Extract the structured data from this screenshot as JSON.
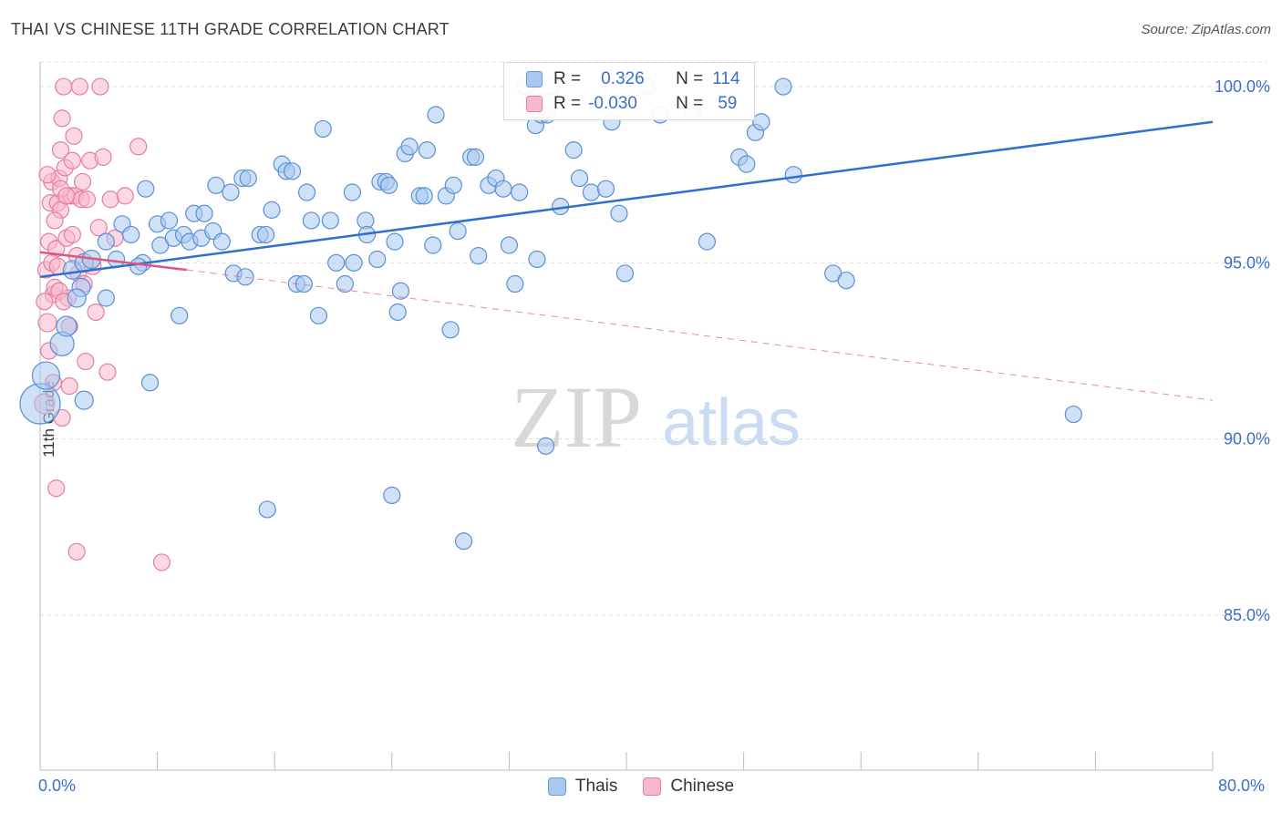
{
  "title": "THAI VS CHINESE 11TH GRADE CORRELATION CHART",
  "source": "Source: ZipAtlas.com",
  "watermark": {
    "zip": "ZIP",
    "atlas": "atlas"
  },
  "legend": {
    "rows": [
      {
        "r_label": "R =",
        "r_value": "0.326",
        "n_label": "N =",
        "n_value": "114",
        "color": "#a8c8f0",
        "border": "#6a9be0"
      },
      {
        "r_label": "R =",
        "r_value": "-0.030",
        "n_label": "N =",
        "n_value": "59",
        "color": "#f7b8cc",
        "border": "#e87ea0"
      }
    ]
  },
  "bottom_legend": [
    {
      "label": "Thais",
      "color": "#a8c8f0",
      "border": "#6a9be0"
    },
    {
      "label": "Chinese",
      "color": "#f7b8cc",
      "border": "#e87ea0"
    }
  ],
  "colors": {
    "thai_fill": "#a8c8f0",
    "thai_stroke": "#5b8fd6",
    "thai_line": "#2f6fd0",
    "chinese_fill": "#f7b8cc",
    "chinese_stroke": "#e57ea1",
    "chinese_line": "#e0557f",
    "grid": "#dddddd",
    "tick_label": "#3b6fc9"
  },
  "chart_data": {
    "type": "scatter",
    "title": "THAI VS CHINESE 11TH GRADE CORRELATION CHART",
    "xlabel": "",
    "ylabel": "11th Grade",
    "xlim": [
      0,
      80
    ],
    "ylim": [
      80.5,
      100.8
    ],
    "x_tick_labels": [
      "0.0%",
      "80.0%"
    ],
    "y_ticks": [
      85,
      90,
      95,
      100
    ],
    "y_tick_labels": [
      "85.0%",
      "90.0%",
      "95.0%",
      "100.0%"
    ],
    "grid": true,
    "legend_placement": "top-center",
    "series": [
      {
        "name": "Thais",
        "trend": {
          "x0": 0,
          "y0": 94.6,
          "x1": 80,
          "y1": 99.0,
          "style": "solid"
        },
        "points": [
          [
            0,
            91.0,
            22
          ],
          [
            0.4,
            91.8,
            15
          ],
          [
            1.5,
            92.7,
            13
          ],
          [
            1.8,
            93.2,
            11
          ],
          [
            2.2,
            94.8,
            10
          ],
          [
            2.8,
            94.3,
            10
          ],
          [
            3.0,
            95.0,
            10
          ],
          [
            3.5,
            95.1,
            10
          ],
          [
            4.5,
            95.6,
            9
          ],
          [
            5.2,
            95.1,
            9
          ],
          [
            5.6,
            96.1,
            9
          ],
          [
            6.2,
            95.8,
            9
          ],
          [
            7.0,
            95.0,
            9
          ],
          [
            7.2,
            97.1,
            9
          ],
          [
            8.0,
            96.1,
            9
          ],
          [
            8.2,
            95.5,
            9
          ],
          [
            8.8,
            96.2,
            9
          ],
          [
            9.1,
            95.7,
            9
          ],
          [
            9.8,
            95.8,
            9
          ],
          [
            10.2,
            95.6,
            9
          ],
          [
            10.5,
            96.4,
            9
          ],
          [
            11.0,
            95.7,
            9
          ],
          [
            11.2,
            96.4,
            9
          ],
          [
            11.8,
            95.9,
            9
          ],
          [
            12.0,
            97.2,
            9
          ],
          [
            12.4,
            95.6,
            9
          ],
          [
            13.0,
            97.0,
            9
          ],
          [
            13.2,
            94.7,
            9
          ],
          [
            13.8,
            97.4,
            9
          ],
          [
            14.2,
            97.4,
            9
          ],
          [
            14.0,
            94.6,
            9
          ],
          [
            15.0,
            95.8,
            9
          ],
          [
            15.4,
            95.8,
            9
          ],
          [
            15.8,
            96.5,
            9
          ],
          [
            16.5,
            97.8,
            9
          ],
          [
            16.8,
            97.6,
            9
          ],
          [
            17.2,
            97.6,
            9
          ],
          [
            17.5,
            94.4,
            9
          ],
          [
            18.0,
            94.4,
            9
          ],
          [
            18.2,
            97.0,
            9
          ],
          [
            18.5,
            96.2,
            9
          ],
          [
            19.0,
            93.5,
            9
          ],
          [
            19.3,
            98.8,
            9
          ],
          [
            19.8,
            96.2,
            9
          ],
          [
            20.2,
            95.0,
            9
          ],
          [
            20.8,
            94.4,
            9
          ],
          [
            21.3,
            97.0,
            9
          ],
          [
            21.4,
            95.0,
            9
          ],
          [
            22.2,
            96.2,
            9
          ],
          [
            22.3,
            95.8,
            9
          ],
          [
            23.0,
            95.1,
            9
          ],
          [
            23.2,
            97.3,
            9
          ],
          [
            23.6,
            97.3,
            9
          ],
          [
            23.8,
            97.2,
            9
          ],
          [
            24.2,
            95.6,
            9
          ],
          [
            24.4,
            93.6,
            9
          ],
          [
            24.9,
            98.1,
            9
          ],
          [
            25.2,
            98.3,
            9
          ],
          [
            25.9,
            96.9,
            9
          ],
          [
            26.2,
            96.9,
            9
          ],
          [
            26.4,
            98.2,
            9
          ],
          [
            26.8,
            95.5,
            9
          ],
          [
            27.0,
            99.2,
            9
          ],
          [
            27.7,
            96.9,
            9
          ],
          [
            28.2,
            97.2,
            9
          ],
          [
            28.5,
            95.9,
            9
          ],
          [
            28.0,
            93.1,
            9
          ],
          [
            29.4,
            98.0,
            9
          ],
          [
            29.7,
            98.0,
            9
          ],
          [
            29.9,
            95.2,
            9
          ],
          [
            30.6,
            97.2,
            9
          ],
          [
            31.1,
            97.4,
            9
          ],
          [
            31.6,
            97.1,
            9
          ],
          [
            32.0,
            95.5,
            9
          ],
          [
            32.4,
            94.4,
            9
          ],
          [
            32.7,
            97.0,
            9
          ],
          [
            33.1,
            100.0,
            9
          ],
          [
            33.8,
            98.9,
            9
          ],
          [
            33.9,
            95.1,
            9
          ],
          [
            34.2,
            99.2,
            9
          ],
          [
            34.6,
            99.2,
            9
          ],
          [
            34.9,
            100.0,
            9
          ],
          [
            35.5,
            96.6,
            9
          ],
          [
            36.4,
            98.2,
            9
          ],
          [
            36.8,
            97.4,
            9
          ],
          [
            37.6,
            97.0,
            9
          ],
          [
            38.6,
            97.1,
            9
          ],
          [
            39.0,
            99.0,
            9
          ],
          [
            39.5,
            96.4,
            9
          ],
          [
            39.9,
            94.7,
            9
          ],
          [
            41.4,
            100.0,
            9
          ],
          [
            42.3,
            99.2,
            9
          ],
          [
            44.5,
            99.3,
            9
          ],
          [
            45.5,
            95.6,
            9
          ],
          [
            47.7,
            98.0,
            9
          ],
          [
            48.2,
            97.8,
            9
          ],
          [
            48.8,
            98.7,
            9
          ],
          [
            49.2,
            99.0,
            9
          ],
          [
            50.7,
            100.0,
            9
          ],
          [
            51.4,
            97.5,
            9
          ],
          [
            54.1,
            94.7,
            9
          ],
          [
            55.0,
            94.5,
            9
          ],
          [
            4.5,
            94.0,
            9
          ],
          [
            6.7,
            94.9,
            9
          ],
          [
            7.5,
            91.6,
            9
          ],
          [
            9.5,
            93.5,
            9
          ],
          [
            15.5,
            88.0,
            9
          ],
          [
            24.6,
            94.2,
            9
          ],
          [
            24.0,
            88.4,
            9
          ],
          [
            28.9,
            87.1,
            9
          ],
          [
            34.5,
            89.8,
            9
          ],
          [
            70.5,
            90.7,
            9
          ],
          [
            3.0,
            91.1,
            10
          ],
          [
            2.5,
            94.0,
            10
          ]
        ]
      },
      {
        "name": "Chinese",
        "trend": {
          "x0": 0,
          "y0": 95.3,
          "x1": 10,
          "y1": 94.8,
          "style": "solid",
          "ext_x1": 80,
          "ext_y1": 91.1
        },
        "points": [
          [
            0.3,
            91.0,
            11
          ],
          [
            0.5,
            93.3,
            10
          ],
          [
            0.6,
            95.6,
            9
          ],
          [
            0.7,
            96.7,
            9
          ],
          [
            0.8,
            97.3,
            9
          ],
          [
            0.9,
            94.1,
            9
          ],
          [
            1.0,
            94.3,
            9
          ],
          [
            1.1,
            95.4,
            9
          ],
          [
            1.2,
            96.7,
            9
          ],
          [
            1.3,
            97.4,
            9
          ],
          [
            1.4,
            98.2,
            9
          ],
          [
            1.5,
            99.1,
            9
          ],
          [
            1.6,
            100.0,
            9
          ],
          [
            1.7,
            97.7,
            9
          ],
          [
            1.8,
            95.7,
            9
          ],
          [
            1.9,
            94.0,
            9
          ],
          [
            2.0,
            93.2,
            9
          ],
          [
            2.1,
            96.9,
            9
          ],
          [
            2.2,
            97.9,
            9
          ],
          [
            2.3,
            98.6,
            9
          ],
          [
            2.4,
            96.9,
            9
          ],
          [
            2.5,
            95.2,
            9
          ],
          [
            2.6,
            94.7,
            9
          ],
          [
            2.7,
            100.0,
            9
          ],
          [
            2.8,
            96.8,
            9
          ],
          [
            2.9,
            97.3,
            9
          ],
          [
            3.0,
            94.4,
            9
          ],
          [
            3.1,
            92.2,
            9
          ],
          [
            3.2,
            96.8,
            9
          ],
          [
            3.4,
            97.9,
            9
          ],
          [
            3.6,
            94.9,
            9
          ],
          [
            3.8,
            93.6,
            9
          ],
          [
            4.0,
            96.0,
            9
          ],
          [
            4.1,
            100.0,
            9
          ],
          [
            4.3,
            98.0,
            9
          ],
          [
            4.6,
            91.9,
            9
          ],
          [
            4.8,
            96.8,
            9
          ],
          [
            5.1,
            95.7,
            9
          ],
          [
            5.8,
            96.9,
            9
          ],
          [
            6.7,
            98.3,
            9
          ],
          [
            0.4,
            94.8,
            9
          ],
          [
            0.9,
            91.6,
            9
          ],
          [
            1.1,
            88.6,
            9
          ],
          [
            1.3,
            94.2,
            9
          ],
          [
            1.4,
            96.5,
            9
          ],
          [
            1.5,
            90.6,
            9
          ],
          [
            2.0,
            91.5,
            9
          ],
          [
            2.5,
            86.8,
            9
          ],
          [
            8.3,
            86.5,
            9
          ],
          [
            0.6,
            92.5,
            9
          ],
          [
            0.8,
            95.0,
            9
          ],
          [
            1.0,
            96.2,
            9
          ],
          [
            1.2,
            94.9,
            9
          ],
          [
            1.4,
            97.1,
            9
          ],
          [
            1.6,
            93.9,
            9
          ],
          [
            1.8,
            96.9,
            9
          ],
          [
            2.2,
            95.8,
            9
          ],
          [
            0.3,
            93.9,
            9
          ],
          [
            0.5,
            97.5,
            9
          ]
        ]
      }
    ]
  }
}
